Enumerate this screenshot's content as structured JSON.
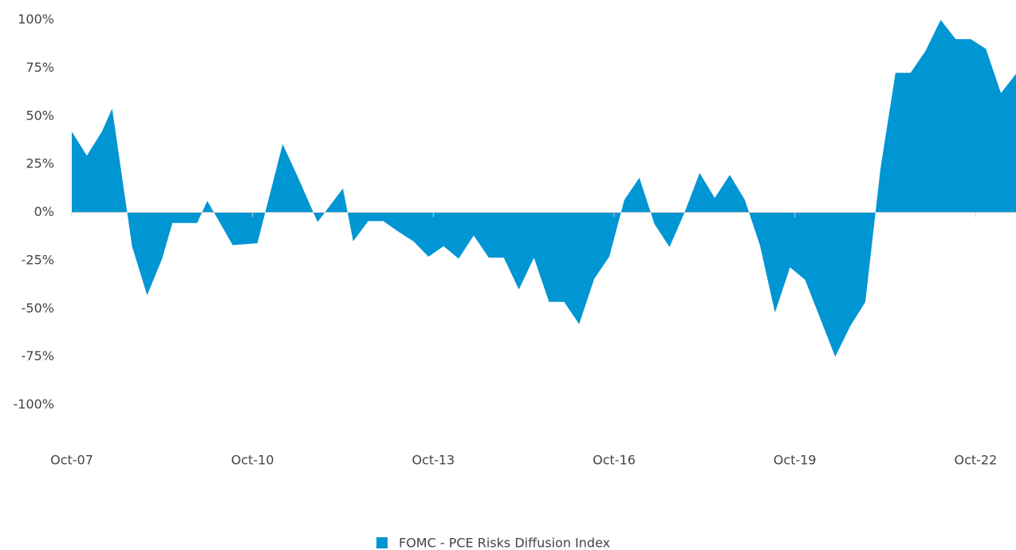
{
  "chart_data": {
    "type": "area",
    "x": [
      2007.75,
      2008.0,
      2008.25,
      2008.42,
      2008.75,
      2009.0,
      2009.25,
      2009.42,
      2009.83,
      2010.0,
      2010.42,
      2010.83,
      2011.25,
      2011.5,
      2011.83,
      2012.25,
      2012.42,
      2012.67,
      2012.92,
      2013.17,
      2013.42,
      2013.67,
      2013.92,
      2014.17,
      2014.42,
      2014.67,
      2014.92,
      2015.17,
      2015.42,
      2015.67,
      2015.92,
      2016.17,
      2016.42,
      2016.67,
      2016.92,
      2017.17,
      2017.42,
      2017.67,
      2017.92,
      2018.17,
      2018.42,
      2018.67,
      2018.92,
      2019.17,
      2019.42,
      2019.67,
      2019.92,
      2020.42,
      2020.67,
      2020.92,
      2021.17,
      2021.42,
      2021.67,
      2021.92,
      2022.17,
      2022.42,
      2022.67,
      2022.92,
      2023.17,
      2023.42
    ],
    "series": [
      {
        "name": "FOMC - PCE Risks Diffusion Index",
        "color": "#0095d3",
        "values": [
          42,
          29.5,
          42,
          54,
          -17.5,
          -43,
          -24,
          -5.5,
          -5.5,
          6,
          -17,
          -16,
          35.5,
          18.5,
          -5,
          12.5,
          -15,
          -4.5,
          -4.5,
          -10,
          -15,
          -23,
          -17.5,
          -24,
          -12,
          -23.5,
          -23.5,
          -40,
          -23.5,
          -46.5,
          -46.5,
          -58,
          -34.5,
          -23,
          6.5,
          18,
          -6,
          -18,
          0,
          20.5,
          7.5,
          19.5,
          6.5,
          -17,
          -52,
          -28.5,
          -35,
          -75,
          -59,
          -46.5,
          22.5,
          72.5,
          72.5,
          84,
          100,
          90,
          90,
          85,
          62,
          72
        ]
      }
    ],
    "xlim": [
      2007.75,
      2023.42
    ],
    "xticks": [
      {
        "value": 2007.75,
        "label": "Oct-07"
      },
      {
        "value": 2010.75,
        "label": "Oct-10"
      },
      {
        "value": 2013.75,
        "label": "Oct-13"
      },
      {
        "value": 2016.75,
        "label": "Oct-16"
      },
      {
        "value": 2019.75,
        "label": "Oct-19"
      },
      {
        "value": 2022.75,
        "label": "Oct-22"
      }
    ],
    "ylim": [
      -100,
      100
    ],
    "yticks": [
      {
        "value": 100,
        "label": "100%"
      },
      {
        "value": 75,
        "label": "75%"
      },
      {
        "value": 50,
        "label": "50%"
      },
      {
        "value": 25,
        "label": "25%"
      },
      {
        "value": 0,
        "label": "0%"
      },
      {
        "value": -25,
        "label": "-25%"
      },
      {
        "value": -50,
        "label": "-50%"
      },
      {
        "value": -75,
        "label": "-75%"
      },
      {
        "value": -100,
        "label": "-100%"
      }
    ],
    "legend": "bottom"
  }
}
